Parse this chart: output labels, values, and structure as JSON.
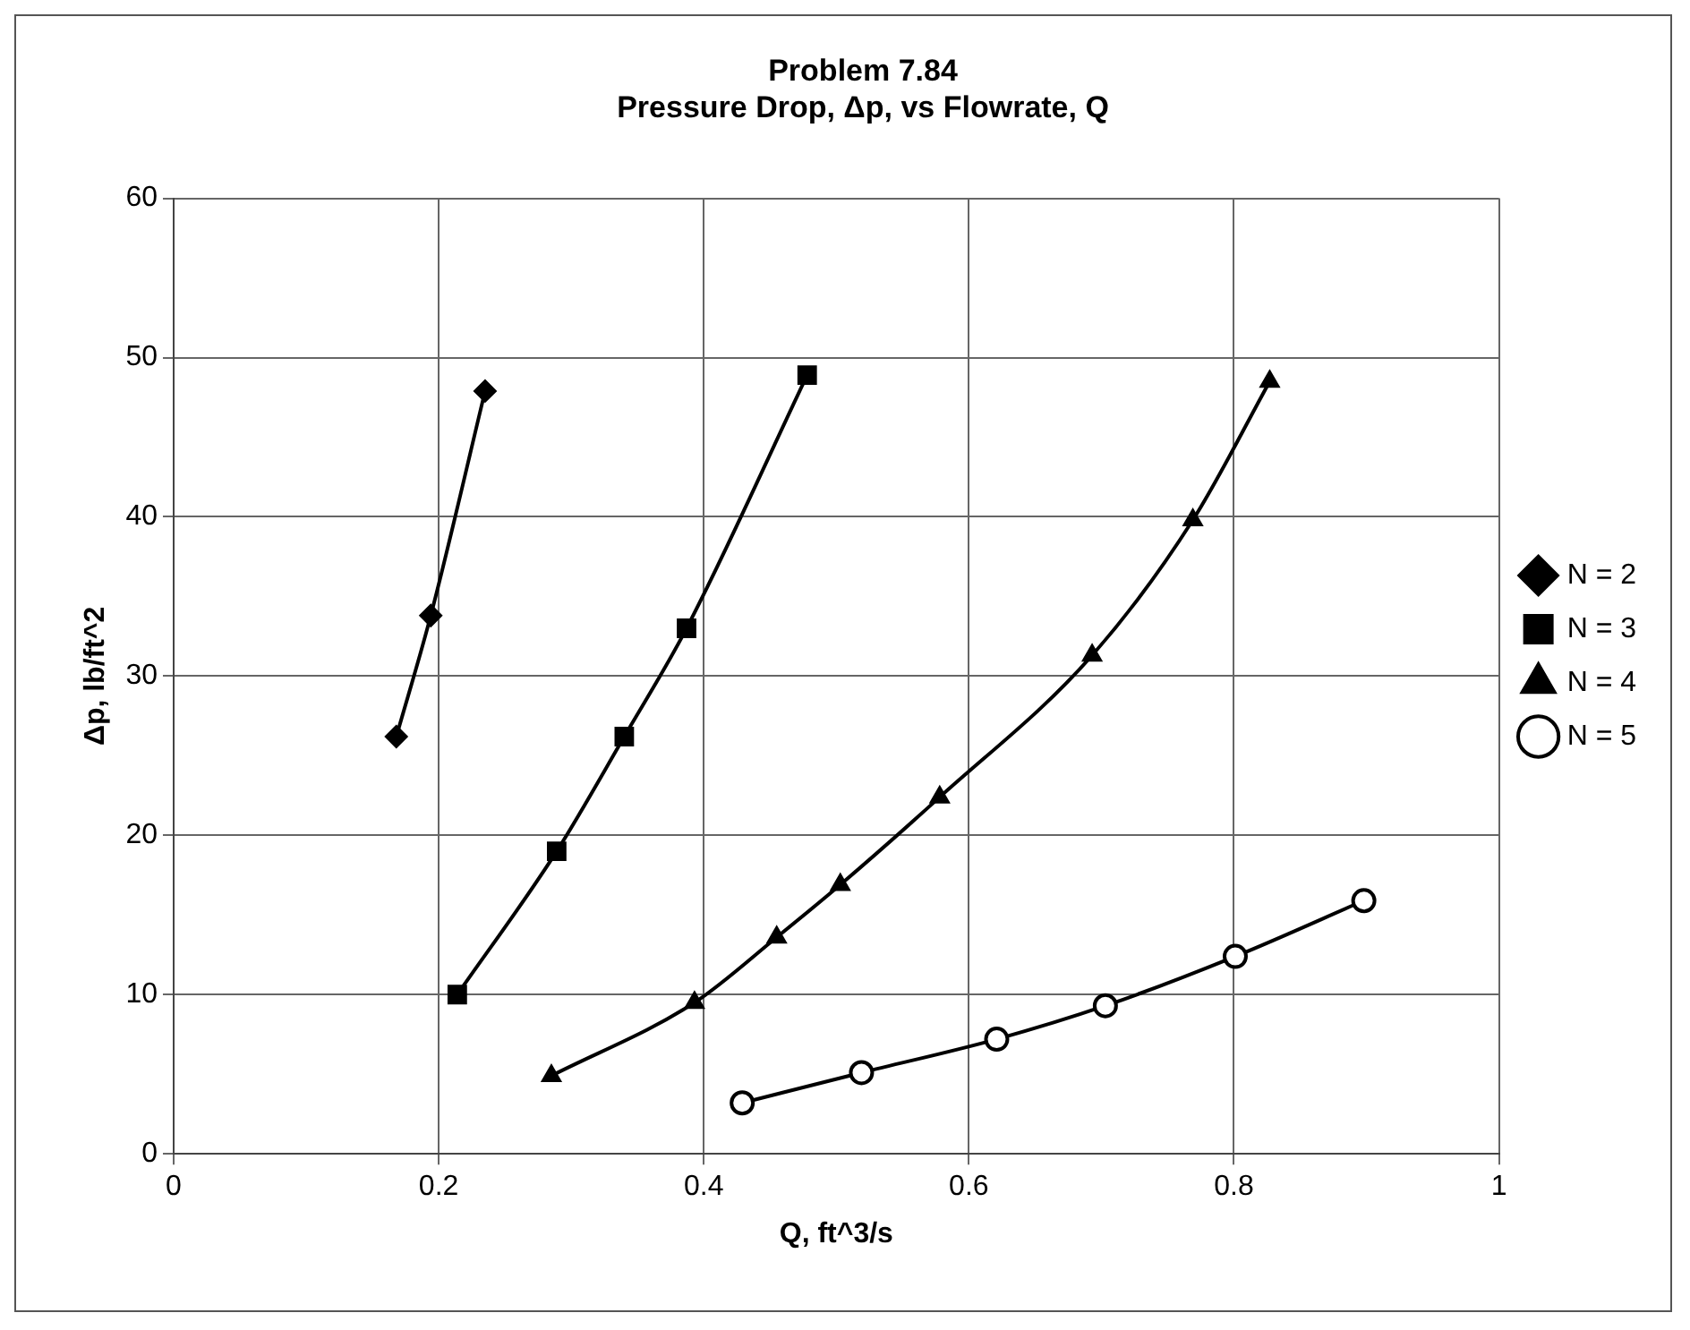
{
  "chart_data": {
    "type": "line",
    "title": [
      "Problem 7.84",
      "Pressure Drop, Δp, vs Flowrate, Q"
    ],
    "xlabel": "Q, ft^3/s",
    "ylabel": "Δp, lb/ft^2",
    "xlim": [
      0,
      1
    ],
    "xticks": [
      0,
      0.2,
      0.4,
      0.6,
      0.8,
      1
    ],
    "ylim": [
      0,
      60
    ],
    "yticks": [
      0,
      10,
      20,
      30,
      40,
      50,
      60
    ],
    "grid": true,
    "legend": "right",
    "line_style": "solid",
    "series": [
      {
        "name": "N = 2",
        "color": "#000000",
        "marker": "diamond",
        "x": [
          0.168,
          0.194,
          0.235
        ],
        "values": [
          26.2,
          33.8,
          47.9
        ]
      },
      {
        "name": "N = 3",
        "color": "#000000",
        "marker": "square",
        "x": [
          0.214,
          0.289,
          0.34,
          0.387,
          0.478
        ],
        "values": [
          10.0,
          19.0,
          26.2,
          33.0,
          48.9
        ]
      },
      {
        "name": "N = 4",
        "color": "#000000",
        "marker": "triangle",
        "x": [
          0.285,
          0.393,
          0.455,
          0.503,
          0.578,
          0.693,
          0.769,
          0.827
        ],
        "values": [
          4.9,
          9.5,
          13.6,
          16.9,
          22.4,
          31.3,
          39.8,
          48.5
        ]
      },
      {
        "name": "N = 5",
        "color": "#000000",
        "marker": "circle",
        "x": [
          0.429,
          0.519,
          0.621,
          0.703,
          0.801,
          0.898
        ],
        "values": [
          3.2,
          5.1,
          7.2,
          9.3,
          12.4,
          15.9
        ]
      }
    ]
  }
}
